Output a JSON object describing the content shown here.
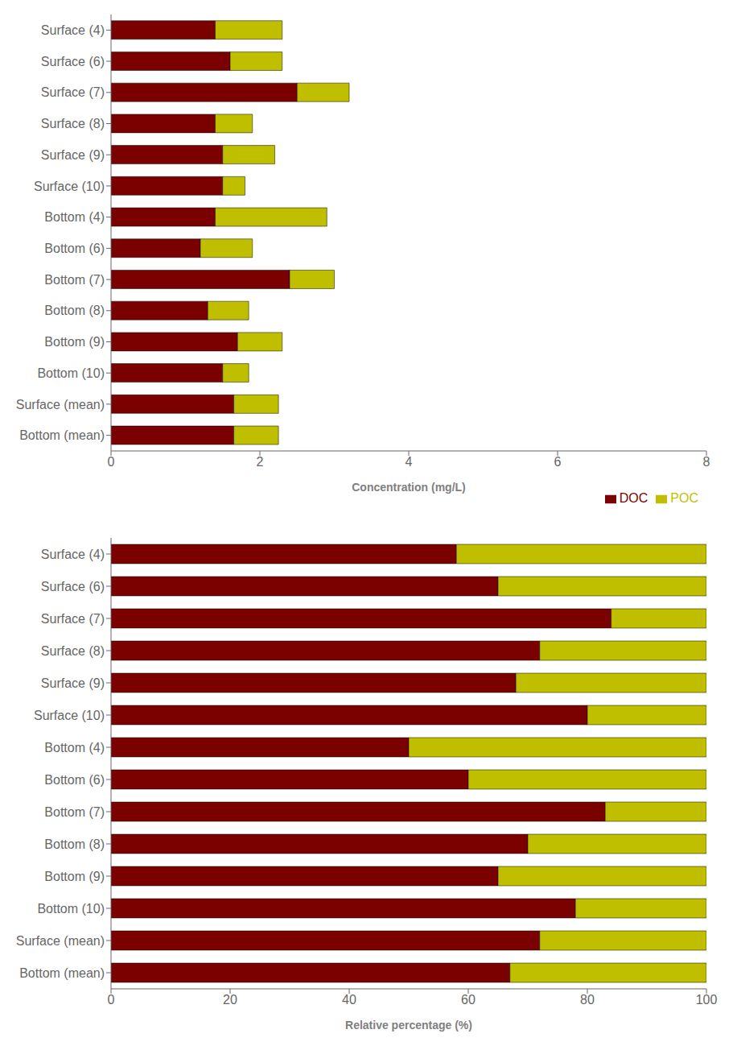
{
  "chart_data": [
    {
      "type": "bar",
      "orientation": "horizontal",
      "stacked": true,
      "categories": [
        "Surface (4)",
        "Surface (6)",
        "Surface (7)",
        "Surface (8)",
        "Surface (9)",
        "Surface (10)",
        "Bottom (4)",
        "Bottom (6)",
        "Bottom (7)",
        "Bottom (8)",
        "Bottom (9)",
        "Bottom (10)",
        "Surface (mean)",
        "Bottom (mean)"
      ],
      "series": [
        {
          "name": "DOC",
          "color": "#7B0000",
          "values": [
            1.4,
            1.6,
            2.5,
            1.4,
            1.5,
            1.5,
            1.4,
            1.2,
            2.4,
            1.3,
            1.7,
            1.5,
            1.65,
            1.65
          ]
        },
        {
          "name": "POC",
          "color": "#BFBF00",
          "values": [
            0.9,
            0.7,
            0.7,
            0.5,
            0.7,
            0.3,
            1.5,
            0.7,
            0.6,
            0.55,
            0.6,
            0.35,
            0.6,
            0.6
          ]
        }
      ],
      "xlabel": "Concentration (mg/L)",
      "xlim": [
        0,
        8
      ],
      "xticks": [
        0,
        2,
        4,
        6,
        8
      ],
      "legend": "lower right"
    },
    {
      "type": "bar",
      "orientation": "horizontal",
      "stacked": true,
      "categories": [
        "Surface (4)",
        "Surface (6)",
        "Surface (7)",
        "Surface (8)",
        "Surface (9)",
        "Surface (10)",
        "Bottom (4)",
        "Bottom (6)",
        "Bottom (7)",
        "Bottom (8)",
        "Bottom (9)",
        "Bottom (10)",
        "Surface (mean)",
        "Bottom (mean)"
      ],
      "series": [
        {
          "name": "DOC",
          "color": "#7B0000",
          "values": [
            58,
            65,
            84,
            72,
            68,
            80,
            50,
            60,
            83,
            70,
            65,
            78,
            72,
            67
          ]
        },
        {
          "name": "POC",
          "color": "#BFBF00",
          "values": [
            42,
            35,
            16,
            28,
            32,
            20,
            50,
            40,
            17,
            30,
            35,
            22,
            28,
            33
          ]
        }
      ],
      "xlabel": "Relative percentage (%)",
      "xlim": [
        0,
        100
      ],
      "xticks": [
        0,
        20,
        40,
        60,
        80,
        100
      ]
    }
  ]
}
